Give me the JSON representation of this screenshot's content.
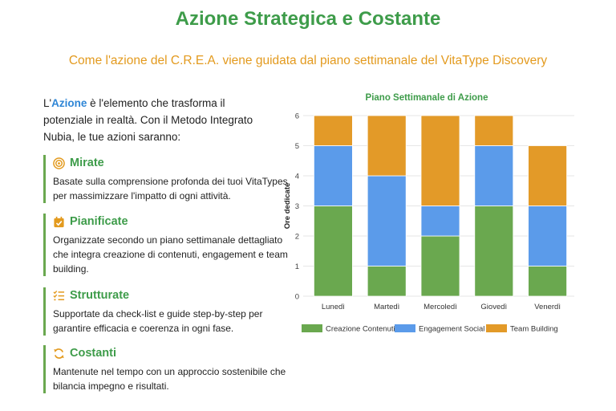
{
  "header": {
    "title": "Azione Strategica e Costante",
    "subtitle": "Come l'azione del C.R.E.A. viene guidata dal piano settimanale del VitaType Discovery"
  },
  "intro": {
    "prefix": "L'",
    "highlight": "Azione",
    "suffix": " è l'elemento che trasforma il potenziale in realtà. Con il Metodo Integrato Nubia, le tue azioni saranno:"
  },
  "cards": [
    {
      "icon": "target-icon",
      "title": "Mirate",
      "text": "Basate sulla comprensione profonda dei tuoi VitaTypes, per massimizzare l'impatto di ogni attività."
    },
    {
      "icon": "calendar-check-icon",
      "title": "Pianificate",
      "text": "Organizzate secondo un piano settimanale dettagliato che integra creazione di contenuti, engagement e team building."
    },
    {
      "icon": "checklist-icon",
      "title": "Strutturate",
      "text": "Supportate da check-list e guide step-by-step per garantire efficacia e coerenza in ogni fase."
    },
    {
      "icon": "sync-icon",
      "title": "Costanti",
      "text": "Mantenute nel tempo con un approccio sostenibile che bilancia impegno e risultati."
    }
  ],
  "colors": {
    "accent_green": "#3e9c4a",
    "accent_orange": "#e39a1e",
    "accent_blue": "#2f86d6"
  },
  "chart_data": {
    "type": "bar",
    "stacked": true,
    "title": "Piano Settimanale di Azione",
    "xlabel": "",
    "ylabel": "Ore dedicate",
    "ylim": [
      0,
      6
    ],
    "yticks": [
      0,
      1,
      2,
      3,
      4,
      5,
      6
    ],
    "grid": true,
    "legend_position": "bottom",
    "categories": [
      "Lunedì",
      "Martedì",
      "Mercoledì",
      "Giovedì",
      "Venerdì"
    ],
    "series": [
      {
        "name": "Creazione Contenuti",
        "color": "#6aa84f",
        "values": [
          3,
          1,
          2,
          3,
          1
        ]
      },
      {
        "name": "Engagement Social",
        "color": "#5b9bea",
        "values": [
          2,
          3,
          1,
          2,
          2
        ]
      },
      {
        "name": "Team Building",
        "color": "#e39a28",
        "values": [
          1,
          2,
          3,
          1,
          2
        ]
      }
    ]
  }
}
